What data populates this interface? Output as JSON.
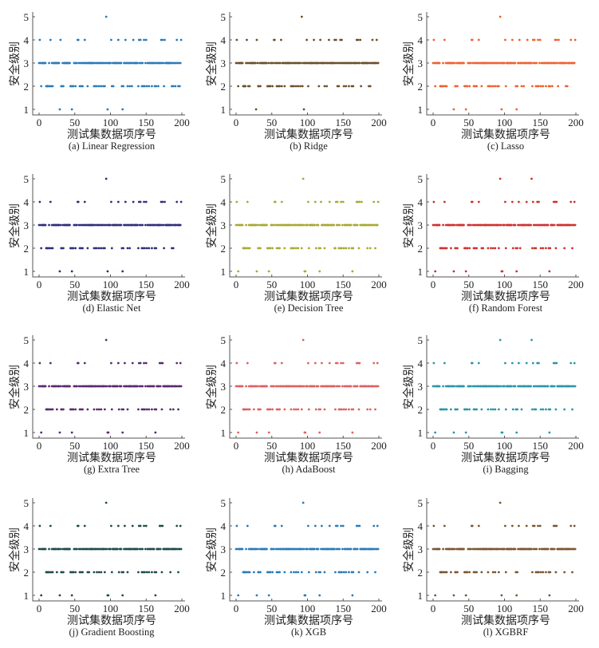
{
  "chart_data": [
    {
      "type": "scatter",
      "caption": "(a) Linear Regression",
      "color": "#2a7ab8",
      "xlabel": "测试集数据项序号",
      "ylabel": "安全级别",
      "xlim": [
        0,
        200
      ],
      "ylim": [
        1,
        5
      ],
      "xticks": [
        "0",
        "50",
        "100",
        "150",
        "200"
      ],
      "yticks": [
        "1",
        "2",
        "3",
        "4",
        "5"
      ],
      "n": 200,
      "default_y": 3,
      "levels": {
        "1": [
          29,
          46,
          96,
          117
        ],
        "2": [
          3,
          10,
          11,
          12,
          13,
          15,
          17,
          19,
          31,
          32,
          34,
          44,
          45,
          47,
          48,
          51,
          57,
          59,
          61,
          64,
          68,
          77,
          79,
          81,
          84,
          87,
          90,
          92,
          102,
          104,
          116,
          118,
          124,
          127,
          130,
          139,
          140,
          142,
          144,
          146,
          148,
          151,
          154,
          158,
          162,
          164,
          167,
          175,
          186,
          188,
          191,
          195,
          197
        ],
        "4": [
          1,
          16,
          30,
          54,
          55,
          64,
          101,
          111,
          121,
          132,
          140,
          142,
          147,
          150,
          171,
          173,
          176,
          193,
          199
        ],
        "5": [
          94
        ]
      }
    },
    {
      "type": "scatter",
      "caption": "(b) Ridge",
      "color": "#6b4f2a",
      "xlabel": "测试集数据项序号",
      "ylabel": "安全级别",
      "xlim": [
        0,
        200
      ],
      "ylim": [
        1,
        5
      ],
      "xticks": [
        "0",
        "50",
        "100",
        "150",
        "200"
      ],
      "yticks": [
        "1",
        "2",
        "3",
        "4",
        "5"
      ],
      "n": 200,
      "default_y": 3,
      "levels": {
        "1": [
          28,
          45,
          95,
          116
        ],
        "2": [
          3,
          10,
          11,
          12,
          13,
          15,
          17,
          19,
          31,
          32,
          34,
          44,
          45,
          47,
          48,
          51,
          57,
          59,
          61,
          64,
          68,
          77,
          79,
          81,
          84,
          87,
          90,
          93,
          101,
          116,
          118,
          124,
          127,
          140,
          142,
          144,
          146,
          148,
          151,
          154,
          158,
          162,
          164,
          175,
          186,
          188,
          191
        ],
        "4": [
          1,
          15,
          29,
          53,
          54,
          63,
          99,
          109,
          118,
          130,
          138,
          140,
          146,
          148,
          169,
          171,
          174,
          191,
          197
        ],
        "5": [
          92
        ]
      }
    },
    {
      "type": "scatter",
      "caption": "(c) Lasso",
      "color": "#f06030",
      "xlabel": "测试集数据项序号",
      "ylabel": "安全级别",
      "xlim": [
        0,
        200
      ],
      "ylim": [
        1,
        5
      ],
      "xticks": [
        "0",
        "50",
        "100",
        "150",
        "200"
      ],
      "yticks": [
        "1",
        "2",
        "3",
        "4",
        "5"
      ],
      "n": 200,
      "default_y": 3,
      "levels": {
        "1": [
          29,
          46,
          96,
          117
        ],
        "2": [
          3,
          10,
          11,
          12,
          13,
          15,
          17,
          19,
          31,
          32,
          34,
          44,
          45,
          47,
          48,
          51,
          57,
          59,
          61,
          64,
          68,
          77,
          79,
          81,
          84,
          87,
          90,
          92,
          102,
          116,
          118,
          124,
          127,
          139,
          140,
          142,
          144,
          146,
          148,
          151,
          154,
          158,
          162,
          164,
          167,
          175,
          186,
          188,
          193
        ],
        "4": [
          1,
          16,
          54,
          55,
          64,
          101,
          111,
          121,
          132,
          140,
          142,
          147,
          150,
          171,
          173,
          176,
          193,
          199
        ],
        "5": [
          94
        ]
      }
    },
    {
      "type": "scatter",
      "caption": "(d) Elastic Net",
      "color": "#2e2e7a",
      "xlabel": "测试集数据项序号",
      "ylabel": "安全级别",
      "xlim": [
        0,
        200
      ],
      "ylim": [
        1,
        5
      ],
      "xticks": [
        "0",
        "50",
        "100",
        "150",
        "200"
      ],
      "yticks": [
        "1",
        "2",
        "3",
        "4",
        "5"
      ],
      "n": 200,
      "default_y": 3,
      "levels": {
        "1": [
          29,
          46,
          96,
          117
        ],
        "2": [
          3,
          10,
          11,
          12,
          13,
          15,
          17,
          19,
          31,
          32,
          34,
          44,
          45,
          47,
          48,
          51,
          57,
          59,
          61,
          64,
          68,
          77,
          79,
          81,
          84,
          87,
          90,
          92,
          102,
          116,
          118,
          124,
          127,
          139,
          140,
          142,
          144,
          146,
          148,
          151,
          154,
          158,
          162,
          164,
          175,
          186,
          188,
          193
        ],
        "4": [
          1,
          16,
          54,
          55,
          64,
          101,
          111,
          121,
          132,
          140,
          142,
          147,
          150,
          171,
          173,
          176,
          193,
          199
        ],
        "5": [
          94
        ]
      }
    },
    {
      "type": "scatter",
      "caption": "(e) Decision Tree",
      "color": "#a8a832",
      "xlabel": "测试集数据项序号",
      "ylabel": "安全级别",
      "xlim": [
        0,
        200
      ],
      "ylim": [
        1,
        5
      ],
      "xticks": [
        "0",
        "50",
        "100",
        "150",
        "200"
      ],
      "yticks": [
        "1",
        "2",
        "3",
        "4",
        "5"
      ],
      "n": 200,
      "default_y": 3,
      "levels": {
        "1": [
          3,
          29,
          46,
          96,
          97,
          117,
          163
        ],
        "2": [
          10,
          11,
          12,
          13,
          15,
          17,
          19,
          31,
          32,
          34,
          44,
          45,
          47,
          48,
          51,
          57,
          59,
          61,
          64,
          68,
          77,
          79,
          81,
          84,
          87,
          92,
          102,
          112,
          116,
          118,
          124,
          138,
          139,
          140,
          142,
          144,
          146,
          148,
          151,
          154,
          158,
          162,
          164,
          172,
          184,
          188,
          193,
          195
        ],
        "4": [
          1,
          16,
          54,
          55,
          64,
          101,
          111,
          119,
          131,
          140,
          142,
          147,
          150,
          169,
          171,
          173,
          176,
          193,
          199
        ],
        "5": [
          94
        ]
      }
    },
    {
      "type": "scatter",
      "caption": "(f) Random Forest",
      "color": "#d03030",
      "xlabel": "测试集数据项序号",
      "ylabel": "安全级别",
      "xlim": [
        0,
        200
      ],
      "ylim": [
        1,
        5
      ],
      "xticks": [
        "0",
        "50",
        "100",
        "150",
        "200"
      ],
      "yticks": [
        "1",
        "2",
        "3",
        "4",
        "5"
      ],
      "n": 200,
      "default_y": 3,
      "levels": {
        "1": [
          3,
          29,
          46,
          96,
          97,
          117,
          163
        ],
        "2": [
          10,
          11,
          12,
          13,
          15,
          17,
          19,
          25,
          31,
          32,
          34,
          44,
          45,
          47,
          48,
          51,
          57,
          59,
          61,
          64,
          68,
          70,
          77,
          81,
          84,
          87,
          92,
          102,
          112,
          116,
          118,
          122,
          139,
          140,
          142,
          144,
          146,
          148,
          151,
          154,
          158,
          162,
          164,
          172,
          184,
          193,
          195
        ],
        "4": [
          1,
          16,
          54,
          55,
          64,
          101,
          111,
          120,
          131,
          140,
          146,
          148,
          169,
          171,
          173,
          193,
          198
        ],
        "5": [
          94,
          138
        ]
      }
    },
    {
      "type": "scatter",
      "caption": "(g) Extra Tree",
      "color": "#5a2a6e",
      "xlabel": "测试集数据项序号",
      "ylabel": "安全级别",
      "xlim": [
        0,
        200
      ],
      "ylim": [
        1,
        5
      ],
      "xticks": [
        "0",
        "50",
        "100",
        "150",
        "200"
      ],
      "yticks": [
        "1",
        "2",
        "3",
        "4",
        "5"
      ],
      "n": 200,
      "default_y": 3,
      "levels": {
        "1": [
          3,
          29,
          46,
          96,
          97,
          117,
          163
        ],
        "2": [
          10,
          11,
          12,
          13,
          15,
          17,
          19,
          25,
          31,
          32,
          34,
          44,
          45,
          47,
          48,
          51,
          57,
          59,
          61,
          64,
          68,
          77,
          81,
          84,
          87,
          92,
          102,
          112,
          116,
          118,
          124,
          139,
          140,
          142,
          144,
          146,
          148,
          151,
          154,
          158,
          162,
          164,
          172,
          184,
          188,
          193,
          195
        ],
        "4": [
          1,
          16,
          54,
          55,
          64,
          101,
          111,
          120,
          131,
          140,
          142,
          147,
          150,
          169,
          171,
          173,
          193,
          198
        ],
        "5": [
          94
        ]
      }
    },
    {
      "type": "scatter",
      "caption": "(h) AdaBoost",
      "color": "#e06060",
      "xlabel": "测试集数据项序号",
      "ylabel": "安全级别",
      "xlim": [
        0,
        200
      ],
      "ylim": [
        1,
        5
      ],
      "xticks": [
        "0",
        "50",
        "100",
        "150",
        "200"
      ],
      "yticks": [
        "1",
        "2",
        "3",
        "4",
        "5"
      ],
      "n": 200,
      "default_y": 3,
      "levels": {
        "1": [
          3,
          29,
          46,
          96,
          97,
          117,
          163
        ],
        "2": [
          10,
          11,
          12,
          13,
          15,
          17,
          19,
          25,
          31,
          32,
          34,
          44,
          45,
          47,
          48,
          51,
          57,
          59,
          61,
          64,
          68,
          77,
          81,
          84,
          87,
          92,
          102,
          112,
          116,
          118,
          124,
          139,
          140,
          142,
          144,
          146,
          148,
          151,
          154,
          158,
          162,
          164,
          172,
          184,
          188,
          193,
          195
        ],
        "4": [
          1,
          16,
          54,
          55,
          64,
          101,
          111,
          120,
          131,
          140,
          142,
          147,
          150,
          169,
          171,
          173,
          193,
          198
        ],
        "5": [
          94
        ]
      }
    },
    {
      "type": "scatter",
      "caption": "(i) Bagging",
      "color": "#2a96a8",
      "xlabel": "测试集数据项序号",
      "ylabel": "安全级别",
      "xlim": [
        0,
        200
      ],
      "ylim": [
        1,
        5
      ],
      "xticks": [
        "0",
        "50",
        "100",
        "150",
        "200"
      ],
      "yticks": [
        "1",
        "2",
        "3",
        "4",
        "5"
      ],
      "n": 200,
      "default_y": 3,
      "levels": {
        "1": [
          3,
          29,
          46,
          96,
          97,
          117,
          163
        ],
        "2": [
          10,
          11,
          12,
          13,
          15,
          17,
          19,
          25,
          31,
          32,
          34,
          44,
          45,
          47,
          48,
          51,
          57,
          59,
          61,
          64,
          68,
          77,
          81,
          84,
          87,
          92,
          102,
          112,
          116,
          118,
          124,
          139,
          140,
          142,
          144,
          146,
          148,
          151,
          154,
          158,
          162,
          164,
          172,
          184,
          193,
          195
        ],
        "4": [
          1,
          16,
          54,
          55,
          64,
          101,
          111,
          120,
          131,
          140,
          146,
          148,
          169,
          171,
          173,
          193,
          198
        ],
        "5": [
          94,
          138
        ]
      }
    },
    {
      "type": "scatter",
      "caption": "(j) Gradient Boosting",
      "color": "#1e4a4a",
      "xlabel": "测试集数据项序号",
      "ylabel": "安全级别",
      "xlim": [
        0,
        200
      ],
      "ylim": [
        1,
        5
      ],
      "xticks": [
        "0",
        "50",
        "100",
        "150",
        "200"
      ],
      "yticks": [
        "1",
        "2",
        "3",
        "4",
        "5"
      ],
      "n": 200,
      "default_y": 3,
      "levels": {
        "1": [
          3,
          29,
          46,
          96,
          97,
          117,
          163
        ],
        "2": [
          10,
          11,
          12,
          13,
          15,
          17,
          19,
          25,
          31,
          32,
          34,
          44,
          45,
          47,
          48,
          51,
          57,
          59,
          61,
          64,
          68,
          70,
          77,
          81,
          84,
          87,
          92,
          102,
          112,
          116,
          118,
          124,
          139,
          140,
          142,
          144,
          146,
          148,
          151,
          154,
          158,
          162,
          164,
          172,
          184,
          193,
          195
        ],
        "4": [
          1,
          16,
          54,
          55,
          64,
          101,
          111,
          120,
          131,
          140,
          142,
          147,
          150,
          169,
          171,
          173,
          193,
          198
        ],
        "5": [
          94
        ]
      }
    },
    {
      "type": "scatter",
      "caption": "(k) XGB",
      "color": "#2a7ab8",
      "xlabel": "测试集数据项序号",
      "ylabel": "安全级别",
      "xlim": [
        0,
        200
      ],
      "ylim": [
        1,
        5
      ],
      "xticks": [
        "0",
        "50",
        "100",
        "150",
        "200"
      ],
      "yticks": [
        "1",
        "2",
        "3",
        "4",
        "5"
      ],
      "n": 200,
      "default_y": 3,
      "levels": {
        "1": [
          3,
          29,
          46,
          96,
          97,
          117,
          163
        ],
        "2": [
          10,
          11,
          12,
          13,
          15,
          17,
          19,
          25,
          31,
          32,
          34,
          44,
          45,
          47,
          48,
          51,
          57,
          59,
          61,
          64,
          68,
          77,
          81,
          84,
          87,
          92,
          102,
          112,
          116,
          118,
          124,
          139,
          140,
          142,
          144,
          146,
          148,
          151,
          154,
          158,
          162,
          164,
          172,
          184,
          193,
          195
        ],
        "4": [
          1,
          16,
          54,
          55,
          64,
          101,
          111,
          120,
          131,
          140,
          142,
          147,
          150,
          169,
          171,
          173,
          193,
          198
        ],
        "5": [
          94
        ]
      }
    },
    {
      "type": "scatter",
      "caption": "(l) XGBRF",
      "color": "#7a5530",
      "xlabel": "测试集数据项序号",
      "ylabel": "安全级别",
      "xlim": [
        0,
        200
      ],
      "ylim": [
        1,
        5
      ],
      "xticks": [
        "0",
        "50",
        "100",
        "150",
        "200"
      ],
      "yticks": [
        "1",
        "2",
        "3",
        "4",
        "5"
      ],
      "n": 200,
      "default_y": 3,
      "levels": {
        "1": [
          3,
          29,
          46,
          96,
          117,
          163
        ],
        "2": [
          10,
          11,
          12,
          13,
          15,
          17,
          19,
          25,
          31,
          32,
          34,
          44,
          45,
          47,
          48,
          51,
          57,
          59,
          61,
          64,
          68,
          77,
          84,
          87,
          92,
          102,
          116,
          118,
          139,
          140,
          142,
          144,
          146,
          148,
          151,
          154,
          158,
          162,
          164,
          172,
          184,
          193,
          195
        ],
        "4": [
          1,
          16,
          54,
          55,
          64,
          101,
          111,
          120,
          131,
          140,
          142,
          147,
          150,
          169,
          171,
          173,
          193,
          198
        ],
        "5": [
          94
        ]
      }
    }
  ]
}
